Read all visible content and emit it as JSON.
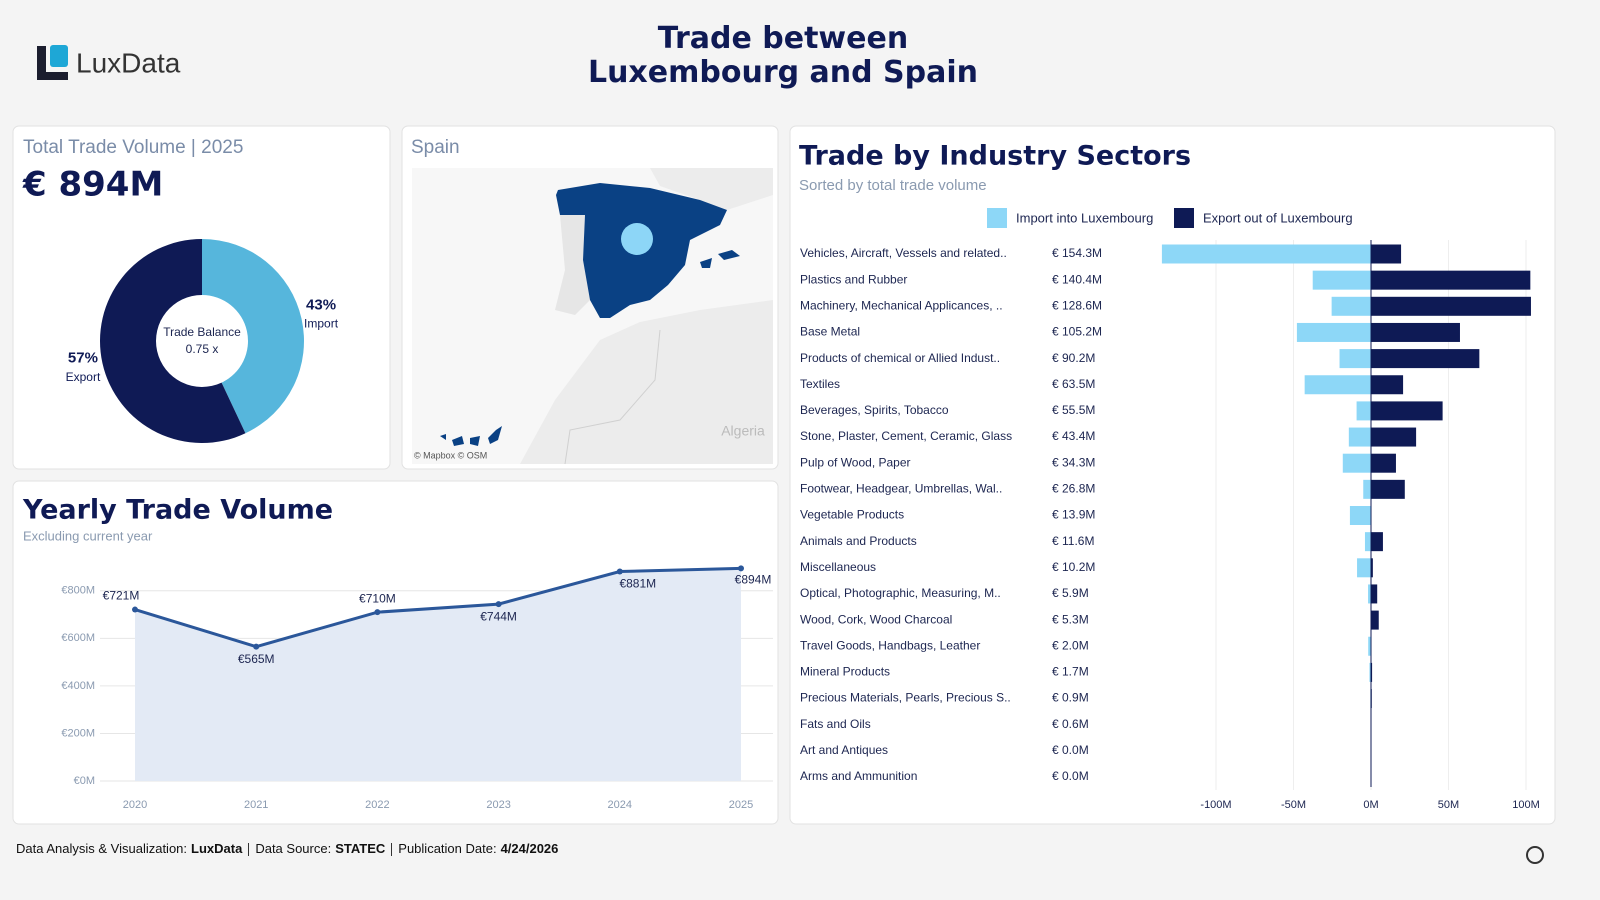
{
  "header": {
    "logo": "LuxData",
    "title": "Trade between Luxembourg and Spain"
  },
  "map": {
    "title": "Spain",
    "attribution": "© Mapbox © OSM",
    "label": "Algeria"
  },
  "chart_data": [
    {
      "type": "pie",
      "title": "Total Trade Volume | 2025",
      "headline": "€ 894M",
      "center_title": "Trade Balance",
      "center_value": "0.75 x",
      "categories": [
        "Import",
        "Export"
      ],
      "values": [
        43,
        57
      ],
      "value_labels": [
        "43%",
        "57%"
      ],
      "colors": [
        "#56b6dc",
        "#0f1a55"
      ]
    },
    {
      "type": "line",
      "title": "Yearly Trade Volume",
      "subtitle": "Excluding current year",
      "categories": [
        "2020",
        "2021",
        "2022",
        "2023",
        "2024",
        "2025"
      ],
      "values": [
        721,
        565,
        710,
        744,
        881,
        894
      ],
      "value_labels": [
        "€721M",
        "€565M",
        "€710M",
        "€744M",
        "€881M",
        "€894M"
      ],
      "color": "#2b579a",
      "area": true,
      "ylim": [
        0,
        900
      ],
      "yticks": [
        {
          "value": 0,
          "label": "€0M"
        },
        {
          "value": 200,
          "label": "€200M"
        },
        {
          "value": 400,
          "label": "€400M"
        },
        {
          "value": 600,
          "label": "€600M"
        },
        {
          "value": 800,
          "label": "€800M"
        }
      ],
      "grid": true
    },
    {
      "type": "bar",
      "orientation": "horizontal",
      "title": "Trade by Industry Sectors",
      "subtitle": "Sorted by total trade volume",
      "categories": [
        "Vehicles, Aircraft, Vessels and related..",
        "Plastics and Rubber",
        "Machinery, Mechanical Applicances, ..",
        "Base Metal",
        "Products of chemical or Allied Indust..",
        "Textiles",
        "Beverages, Spirits, Tobacco",
        "Stone, Plaster, Cement, Ceramic, Glass",
        "Pulp of Wood, Paper",
        "Footwear, Headgear, Umbrellas, Wal..",
        "Vegetable Products",
        "Animals and Products",
        "Miscellaneous",
        "Optical, Photographic, Measuring, M..",
        "Wood, Cork, Wood Charcoal",
        "Travel Goods, Handbags, Leather",
        "Mineral Products",
        "Precious Materials, Pearls, Precious S..",
        "Fats and Oils",
        "Art and Antiques",
        "Arms and Ammunition"
      ],
      "total_labels": [
        "€ 154.3M",
        "€ 140.4M",
        "€ 128.6M",
        "€ 105.2M",
        "€ 90.2M",
        "€ 63.5M",
        "€ 55.5M",
        "€ 43.4M",
        "€ 34.3M",
        "€ 26.8M",
        "€ 13.9M",
        "€ 11.6M",
        "€ 10.2M",
        "€ 5.9M",
        "€ 5.3M",
        "€ 2.0M",
        "€ 1.7M",
        "€ 0.9M",
        "€ 0.6M",
        "€ 0.0M",
        "€ 0.0M"
      ],
      "series": [
        {
          "name": "Import into Luxembourg",
          "color": "#8dd7f7",
          "values": [
            -134.9,
            -37.6,
            -25.4,
            -47.8,
            -20.3,
            -42.8,
            -9.3,
            -14.3,
            -18.2,
            -5.0,
            -13.6,
            -3.9,
            -9.0,
            -1.9,
            -0.3,
            -1.8,
            -1.0,
            -0.4,
            -0.3,
            0,
            0
          ]
        },
        {
          "name": "Export out of Luxembourg",
          "color": "#0e1a55",
          "values": [
            19.4,
            102.8,
            103.2,
            57.4,
            69.9,
            20.7,
            46.2,
            29.1,
            16.1,
            21.8,
            0.3,
            7.7,
            1.2,
            4.0,
            5.0,
            0.2,
            0.7,
            0.5,
            0.3,
            0,
            0
          ]
        }
      ],
      "xlim": [
        -140,
        110
      ],
      "xticks": [
        {
          "value": -100,
          "label": "-100M"
        },
        {
          "value": -50,
          "label": "-50M"
        },
        {
          "value": 0,
          "label": "0M"
        },
        {
          "value": 50,
          "label": "50M"
        },
        {
          "value": 100,
          "label": "100M"
        }
      ],
      "grid": true
    }
  ],
  "footer": [
    {
      "label": "Data Analysis & Visualization:",
      "value": "LuxData"
    },
    {
      "label": "Data Source:",
      "value": "STATEC"
    },
    {
      "label": "Publication Date:",
      "value": "4/24/2026"
    }
  ]
}
